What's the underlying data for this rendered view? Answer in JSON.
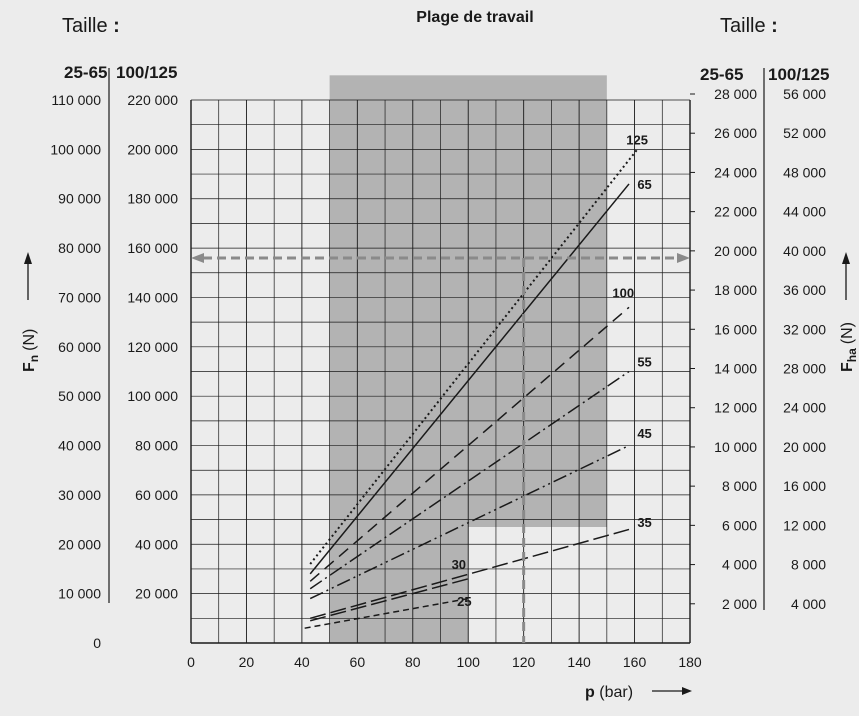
{
  "chart_data": {
    "type": "line",
    "title": "Plage de travail",
    "left_header": "Taille",
    "right_header": "Taille",
    "header_colon": ":",
    "xlabel_symbol": "p",
    "xlabel_unit": "(bar)",
    "xlim": [
      0,
      180
    ],
    "xticks": [
      "0",
      "20",
      "40",
      "60",
      "80",
      "100",
      "120",
      "140",
      "160",
      "180"
    ],
    "left_ylabel_symbol": "F",
    "left_ylabel_sub": "n",
    "left_ylabel_unit": "(N)",
    "right_ylabel_symbol": "F",
    "right_ylabel_sub": "ha",
    "right_ylabel_unit": "(N)",
    "left_axis_groups": [
      {
        "header": "25-65",
        "range": [
          0,
          110000
        ],
        "ticks": [
          "110 000",
          "100 000",
          "90 000",
          "80 000",
          "70 000",
          "60 000",
          "50 000",
          "40 000",
          "30 000",
          "20 000",
          "10 000",
          "0"
        ]
      },
      {
        "header": "100/125",
        "range": [
          0,
          220000
        ],
        "ticks": [
          "220 000",
          "200 000",
          "180 000",
          "160 000",
          "140 000",
          "120 000",
          "100 000",
          "80 000",
          "60 000",
          "40 000",
          "20 000"
        ]
      }
    ],
    "right_axis_groups": [
      {
        "header": "25-65",
        "range": [
          0,
          28000
        ],
        "ticks": [
          "28 000",
          "26 000",
          "24 000",
          "22 000",
          "20 000",
          "18 000",
          "16 000",
          "14 000",
          "12 000",
          "10 000",
          "8 000",
          "6 000",
          "4 000",
          "2 000"
        ]
      },
      {
        "header": "100/125",
        "range": [
          0,
          56000
        ],
        "ticks": [
          "56 000",
          "52 000",
          "48 000",
          "44 000",
          "40 000",
          "36 000",
          "32 000",
          "28 000",
          "24 000",
          "20 000",
          "16 000",
          "12 000",
          "8 000",
          "4 000"
        ]
      }
    ],
    "grid": true,
    "working_range": {
      "upper_x": [
        50,
        150
      ],
      "lower_x": [
        50,
        100
      ],
      "upper_y_min": 23500,
      "lower_y_max": 23500,
      "y_max": 115000,
      "color": "#b3b3b3"
    },
    "series": [
      {
        "name": "125",
        "style": "dotted",
        "x": [
          43,
          161
        ],
        "y": [
          16000,
          100000
        ],
        "label_at": [
          157,
          101000
        ]
      },
      {
        "name": "65",
        "style": "solid",
        "x": [
          43,
          158
        ],
        "y": [
          14000,
          93000
        ],
        "label_at": [
          161,
          92000
        ]
      },
      {
        "name": "100",
        "style": "dashed",
        "x": [
          43,
          158
        ],
        "y": [
          12500,
          68000
        ],
        "label_at": [
          152,
          70000
        ]
      },
      {
        "name": "55",
        "style": "dash-dot",
        "x": [
          43,
          158
        ],
        "y": [
          11000,
          55000
        ],
        "label_at": [
          161,
          56000
        ]
      },
      {
        "name": "45",
        "style": "dash-dot-dot",
        "x": [
          43,
          158
        ],
        "y": [
          9000,
          40000
        ],
        "label_at": [
          161,
          41500
        ]
      },
      {
        "name": "35",
        "style": "long-dash",
        "x": [
          43,
          158
        ],
        "y": [
          5000,
          23000
        ],
        "label_at": [
          161,
          23500
        ]
      },
      {
        "name": "30",
        "style": "long-dash",
        "x": [
          43,
          100
        ],
        "y": [
          4500,
          13000
        ],
        "label_at": [
          94,
          15000
        ]
      },
      {
        "name": "25",
        "style": "short-dash",
        "x": [
          41,
          100
        ],
        "y": [
          3000,
          9000
        ],
        "label_at": [
          96,
          7500
        ]
      }
    ],
    "reference_lines": {
      "horizontal_y": 78000,
      "vertical_x": 120,
      "color": "#8a8a8a"
    }
  }
}
